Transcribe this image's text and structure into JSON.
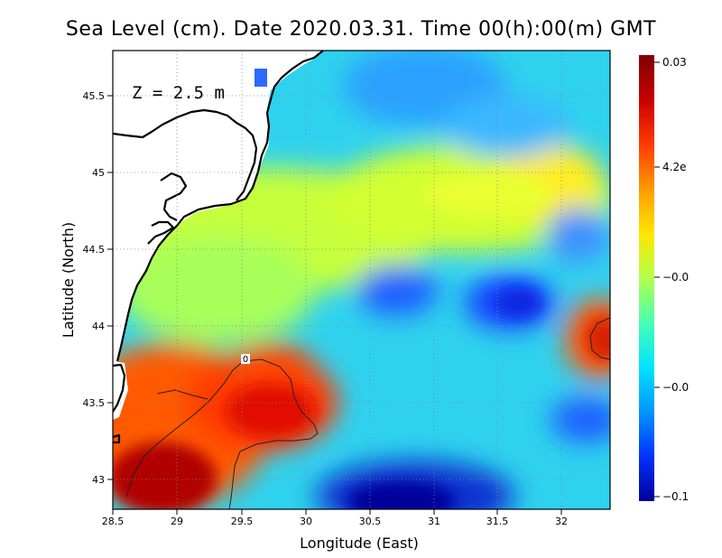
{
  "title": "Sea Level (cm). Date 2020.03.31. Time 00(h):00(m) GMT",
  "depth_label": "Z  =  2.5  m",
  "contour_label": "0",
  "xaxis": {
    "label": "Longitude (East)",
    "ticks": [
      "28.5",
      "29",
      "29.5",
      "30",
      "30.5",
      "31",
      "31.5",
      "32"
    ]
  },
  "yaxis": {
    "label": "Latitude (North)",
    "ticks": [
      "45.5",
      "45",
      "44.5",
      "44",
      "43.5",
      "43"
    ]
  },
  "colorbar": {
    "labels": [
      "0.03",
      "4.2e",
      "−0.0",
      "−0.0",
      "−0.1"
    ],
    "colors": [
      "#7f0000",
      "#c80000",
      "#ff3a00",
      "#ff9a00",
      "#ffe600",
      "#b4ff4c",
      "#46ffb4",
      "#00e4ff",
      "#0096ff",
      "#0032ff",
      "#00009a"
    ]
  },
  "map_colors": {
    "land": "#ffffff",
    "coast": "#000000",
    "ocean_base": "#2fd2ee"
  }
}
